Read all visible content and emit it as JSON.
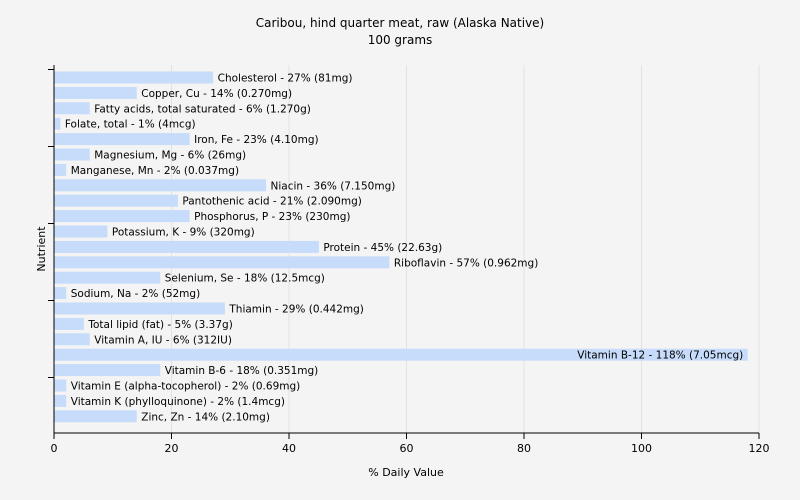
{
  "chart_data": {
    "type": "bar",
    "orientation": "horizontal",
    "title": "Caribou, hind quarter meat, raw (Alaska Native)",
    "subtitle": "100 grams",
    "xlabel": "% Daily Value",
    "ylabel": "Nutrient",
    "xlim": [
      0,
      120
    ],
    "xticks": [
      0,
      20,
      40,
      60,
      80,
      100,
      120
    ],
    "bar_color": "#c6dcfa",
    "background": "#f4f4f4",
    "grid": true,
    "categories": [
      "Cholesterol - 27% (81mg)",
      "Copper, Cu - 14% (0.270mg)",
      "Fatty acids, total saturated - 6% (1.270g)",
      "Folate, total - 1% (4mcg)",
      "Iron, Fe - 23% (4.10mg)",
      "Magnesium, Mg - 6% (26mg)",
      "Manganese, Mn - 2% (0.037mg)",
      "Niacin - 36% (7.150mg)",
      "Pantothenic acid - 21% (2.090mg)",
      "Phosphorus, P - 23% (230mg)",
      "Potassium, K - 9% (320mg)",
      "Protein - 45% (22.63g)",
      "Riboflavin - 57% (0.962mg)",
      "Selenium, Se - 18% (12.5mcg)",
      "Sodium, Na - 2% (52mg)",
      "Thiamin - 29% (0.442mg)",
      "Total lipid (fat) - 5% (3.37g)",
      "Vitamin A, IU - 6% (312IU)",
      "Vitamin B-12 - 118% (7.05mcg)",
      "Vitamin B-6 - 18% (0.351mg)",
      "Vitamin E (alpha-tocopherol) - 2% (0.69mg)",
      "Vitamin K (phylloquinone) - 2% (1.4mcg)",
      "Zinc, Zn - 14% (2.10mg)"
    ],
    "values": [
      27,
      14,
      6,
      1,
      23,
      6,
      2,
      36,
      21,
      23,
      9,
      45,
      57,
      18,
      2,
      29,
      5,
      6,
      118,
      18,
      2,
      2,
      14
    ]
  }
}
